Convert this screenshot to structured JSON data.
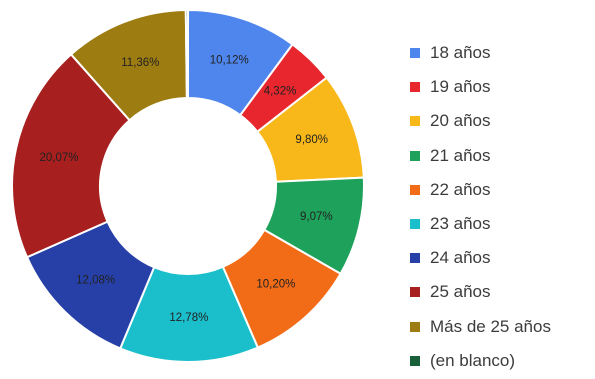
{
  "chart_data": {
    "type": "pie",
    "title": "",
    "legend_position": "right",
    "categories": [
      "18 años",
      "19 años",
      "20 años",
      "21 años",
      "22 años",
      "23 años",
      "24 años",
      "25 años",
      "Más de 25 años",
      "(en blanco)"
    ],
    "values": [
      10.12,
      4.32,
      9.8,
      9.07,
      10.2,
      12.78,
      12.08,
      20.07,
      11.36,
      0.2
    ],
    "labels": [
      "10,12%",
      "4,32%",
      "9,80%",
      "9,07%",
      "10,20%",
      "12,78%",
      "12,08%",
      "20,07%",
      "11,36%",
      ""
    ],
    "colors": [
      "#4f86ed",
      "#e8262e",
      "#f8b81a",
      "#1ea15a",
      "#f26b17",
      "#1bbfcc",
      "#2740a8",
      "#a71f1e",
      "#9d7c12",
      "#17603a"
    ],
    "donut": true
  }
}
